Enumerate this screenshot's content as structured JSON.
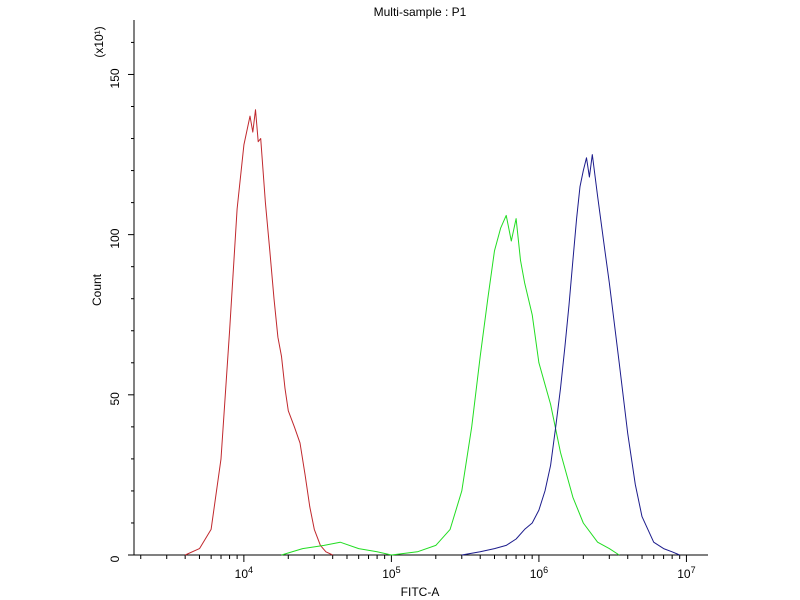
{
  "chart_data": {
    "type": "line",
    "title": "Multi-sample : P1",
    "xlabel": "FITC-A",
    "ylabel": "Count",
    "y_multiplier_label": "(x10¹)",
    "x_scale": "log",
    "xlim": [
      1800,
      14000000
    ],
    "ylim": [
      0,
      167
    ],
    "x_ticks": [
      {
        "value": 10000,
        "base": "10",
        "exp": "4"
      },
      {
        "value": 100000,
        "base": "10",
        "exp": "5"
      },
      {
        "value": 1000000,
        "base": "10",
        "exp": "6"
      },
      {
        "value": 10000000,
        "base": "10",
        "exp": "7"
      }
    ],
    "y_ticks": [
      {
        "value": 0,
        "label": "0"
      },
      {
        "value": 50,
        "label": "50"
      },
      {
        "value": 100,
        "label": "100"
      },
      {
        "value": 150,
        "label": "150"
      }
    ],
    "grid": false,
    "legend": "none",
    "series": [
      {
        "color": "#c0282d",
        "x": [
          4000,
          5000,
          6000,
          7000,
          8000,
          9000,
          10000,
          11000,
          11500,
          12000,
          12500,
          13000,
          14000,
          15000,
          16000,
          17000,
          18000,
          19000,
          20000,
          22000,
          24000,
          26000,
          28000,
          30000,
          33000,
          36000,
          40000
        ],
        "y": [
          0,
          2,
          8,
          30,
          70,
          108,
          128,
          137,
          132,
          139,
          129,
          130,
          110,
          95,
          80,
          68,
          62,
          52,
          45,
          40,
          35,
          25,
          15,
          8,
          3,
          1,
          0
        ]
      },
      {
        "color": "#22dd22",
        "x": [
          18000,
          25000,
          35000,
          45000,
          60000,
          80000,
          100000,
          150000,
          200000,
          250000,
          300000,
          350000,
          400000,
          450000,
          500000,
          550000,
          600000,
          650000,
          700000,
          750000,
          800000,
          900000,
          1000000,
          1200000,
          1400000,
          1700000,
          2000000,
          2500000,
          3000000,
          3500000
        ],
        "y": [
          0,
          2,
          3,
          4,
          2,
          1,
          0,
          1,
          3,
          8,
          20,
          40,
          62,
          80,
          95,
          102,
          106,
          98,
          105,
          92,
          85,
          75,
          60,
          47,
          32,
          18,
          10,
          4,
          2,
          0
        ]
      },
      {
        "color": "#1c1c8c",
        "x": [
          300000,
          400000,
          500000,
          600000,
          700000,
          800000,
          900000,
          1000000,
          1100000,
          1200000,
          1300000,
          1400000,
          1500000,
          1600000,
          1700000,
          1800000,
          1900000,
          2000000,
          2100000,
          2200000,
          2300000,
          2500000,
          2800000,
          3000000,
          3500000,
          4000000,
          4500000,
          5000000,
          6000000,
          7000000,
          8000000,
          9000000
        ],
        "y": [
          0,
          1,
          2,
          3,
          5,
          8,
          10,
          14,
          20,
          28,
          40,
          52,
          65,
          78,
          92,
          105,
          115,
          120,
          124,
          118,
          125,
          112,
          95,
          85,
          60,
          38,
          22,
          12,
          4,
          2,
          1,
          0
        ]
      }
    ]
  }
}
